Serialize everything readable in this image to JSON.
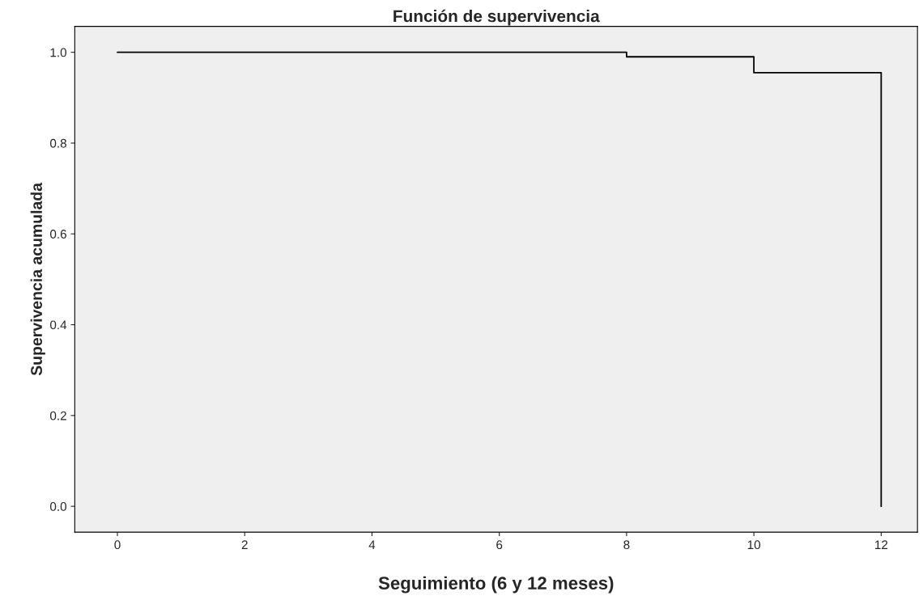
{
  "chart_data": {
    "type": "step",
    "title": "Función de supervivencia",
    "xlabel": "Seguimiento (6 y 12 meses)",
    "ylabel": "Supervivencia acumulada",
    "x": [
      0,
      8,
      10,
      12
    ],
    "series": [
      {
        "color": "#000000",
        "values": [
          1.0,
          0.99,
          0.955,
          0.0
        ]
      }
    ],
    "xlim": [
      -0.67,
      12.57
    ],
    "ylim": [
      -0.057,
      1.057
    ],
    "xticks": [
      0,
      2,
      4,
      6,
      8,
      10,
      12
    ],
    "yticks": [
      {
        "value": 0.0,
        "label": "0.0"
      },
      {
        "value": 0.2,
        "label": "0.2"
      },
      {
        "value": 0.4,
        "label": "0.4"
      },
      {
        "value": 0.6,
        "label": "0.6"
      },
      {
        "value": 0.8,
        "label": "0.8"
      },
      {
        "value": 1.0,
        "label": "1.0"
      }
    ],
    "grid": false
  }
}
